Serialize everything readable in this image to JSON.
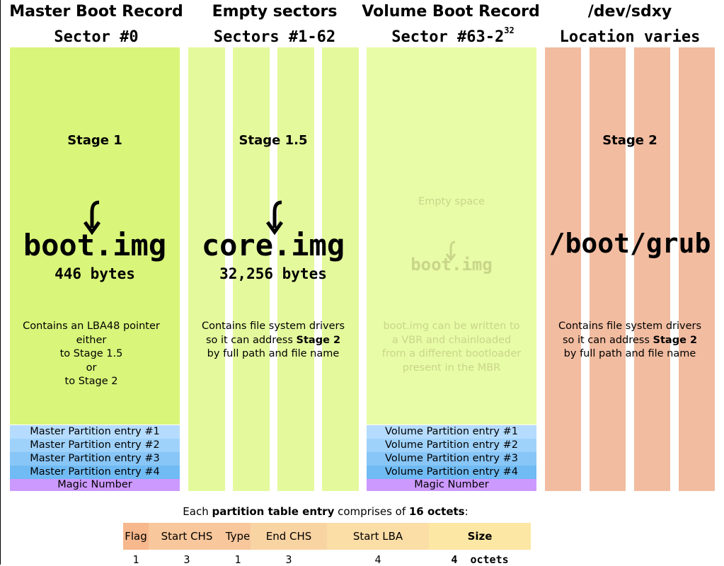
{
  "columns": [
    {
      "title": "Master Boot Record",
      "subtitle": "Sector #0"
    },
    {
      "title": "Empty sectors",
      "subtitle": "Sectors #1-62"
    },
    {
      "title": "Volume Boot Record",
      "subtitle_base": "Sector #63-2",
      "subtitle_sup": "32"
    },
    {
      "title": "/dev/sdxy",
      "subtitle": "Location varies"
    }
  ],
  "mbr": {
    "stage": "Stage 1",
    "image": "boot.img",
    "size": "446 bytes",
    "desc_lines": [
      "Contains an LBA48 pointer",
      "either",
      "to Stage 1.5",
      "or",
      "to Stage 2"
    ],
    "entries": [
      "Master Partition entry #1",
      "Master Partition entry #2",
      "Master Partition entry #3",
      "Master Partition entry #4"
    ],
    "magic": "Magic Number"
  },
  "empty": {
    "stage": "Stage 1.5",
    "image": "core.img",
    "size": "32,256 bytes",
    "desc_line1": "Contains file system drivers",
    "desc_line2_pre": "so it can address ",
    "desc_line2_bold": "Stage 2",
    "desc_line3": "by full path and file name"
  },
  "vbr": {
    "empty_label": "Empty space",
    "image": "boot.img",
    "desc_lines": [
      "boot.img can be written to",
      "a VBR and chainloaded",
      "from a different bootloader",
      "present in the MBR"
    ],
    "entries": [
      "Volume Partition entry #1",
      "Volume Partition entry #2",
      "Volume Partition entry #3",
      "Volume Partition entry #4"
    ],
    "magic": "Magic Number"
  },
  "grub": {
    "stage": "Stage 2",
    "path": "/boot/grub",
    "desc_line1": "Contains file system drivers",
    "desc_line2_pre": "so it can address ",
    "desc_line2_bold": "Stage 2",
    "desc_line3": "by full path and file name"
  },
  "entry_table": {
    "caption_pre": "Each ",
    "caption_bold1": "partition table entry",
    "caption_mid": " comprises of ",
    "caption_bold2": "16 octets",
    "caption_post": ":",
    "fields": [
      {
        "name": "Flag",
        "octets": "1",
        "color": "#f6b88c"
      },
      {
        "name": "Start CHS",
        "octets": "3",
        "color": "#f8c79b"
      },
      {
        "name": "Type",
        "octets": "1",
        "color": "#f8c79b"
      },
      {
        "name": "End CHS",
        "octets": "3",
        "color": "#f9d4a3"
      },
      {
        "name": "Start LBA",
        "octets": "4",
        "color": "#fbdda6"
      },
      {
        "name": "Size",
        "octets": "4",
        "color": "#fde7a4"
      }
    ],
    "unit": "octets"
  },
  "colors": {
    "mbr_green": "#d9f57a",
    "empty_green": "#e4f99c",
    "vbr_green": "#e8fba6",
    "grub_salmon": "#f2bca0",
    "entry_blues": [
      "#b5dcff",
      "#9fd2fb",
      "#88c6f7",
      "#70bbf3"
    ],
    "magic_purple": "#cc99ff"
  }
}
